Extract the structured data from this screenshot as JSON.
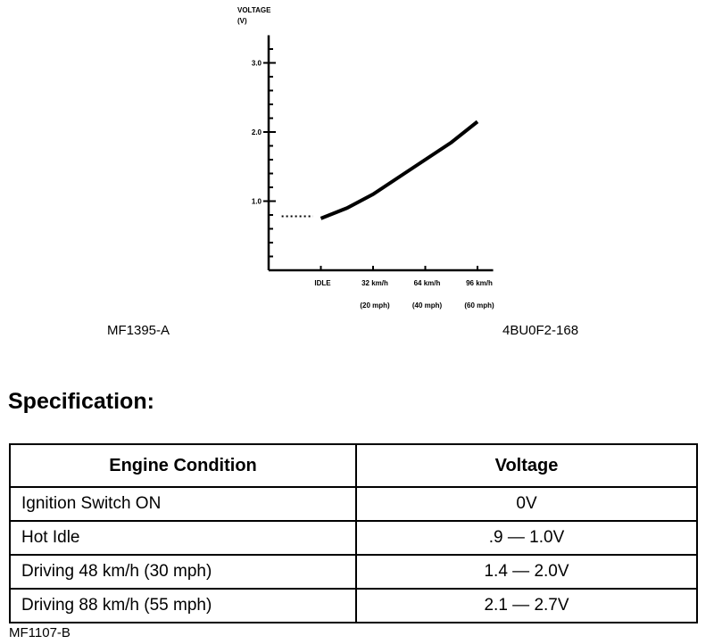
{
  "chart_data": {
    "type": "line",
    "ylabel": "VOLTAGE (V)",
    "ylabel_lines": [
      "VOLTAGE",
      "(V)"
    ],
    "ylim": [
      0,
      3.4
    ],
    "y_ticks": [
      {
        "value": 1.0,
        "label": "1.0"
      },
      {
        "value": 2.0,
        "label": "2.0"
      },
      {
        "value": 3.0,
        "label": "3.0"
      }
    ],
    "x_ticks": [
      {
        "value": 1,
        "label": "IDLE",
        "sub": ""
      },
      {
        "value": 2,
        "label": "32 km/h",
        "sub": "(20 mph)"
      },
      {
        "value": 3,
        "label": "64 km/h",
        "sub": "(40 mph)"
      },
      {
        "value": 4,
        "label": "96 km/h",
        "sub": "(60 mph)"
      }
    ],
    "xlim": [
      0,
      4.3
    ],
    "series": [
      {
        "style": "dotted",
        "x": [
          0.25,
          0.85
        ],
        "y": [
          0.78,
          0.78
        ]
      },
      {
        "style": "solid",
        "x": [
          1.0,
          1.5,
          2.0,
          2.5,
          3.0,
          3.5,
          4.0
        ],
        "y": [
          0.75,
          0.9,
          1.1,
          1.35,
          1.6,
          1.85,
          2.15
        ]
      }
    ],
    "grid": false
  },
  "refs": {
    "left": "MF1395-A",
    "right": "4BU0F2-168",
    "footer": "MF1107-B"
  },
  "spec": {
    "title": "Specification:",
    "headers": [
      "Engine Condition",
      "Voltage"
    ],
    "rows": [
      [
        "Ignition Switch ON",
        "0V"
      ],
      [
        "Hot Idle",
        ".9 — 1.0V"
      ],
      [
        "Driving 48 km/h (30 mph)",
        "1.4 — 2.0V"
      ],
      [
        "Driving 88 km/h (55 mph)",
        "2.1 — 2.7V"
      ]
    ]
  }
}
